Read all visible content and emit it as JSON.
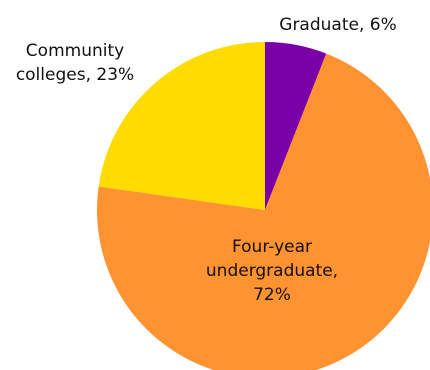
{
  "chart_data": {
    "type": "pie",
    "slices": [
      {
        "label_lines": [
          "Graduate, 6%"
        ],
        "value": 6,
        "color": "#7A00A8"
      },
      {
        "label_lines": [
          "Four-year",
          "undergraduate,",
          "72%"
        ],
        "value": 72,
        "color": "#FF9231"
      },
      {
        "label_lines": [
          "Community",
          "colleges, 23%"
        ],
        "value": 23,
        "color": "#FFDC00"
      }
    ],
    "start_angle_deg": 0,
    "direction": "clockwise"
  }
}
